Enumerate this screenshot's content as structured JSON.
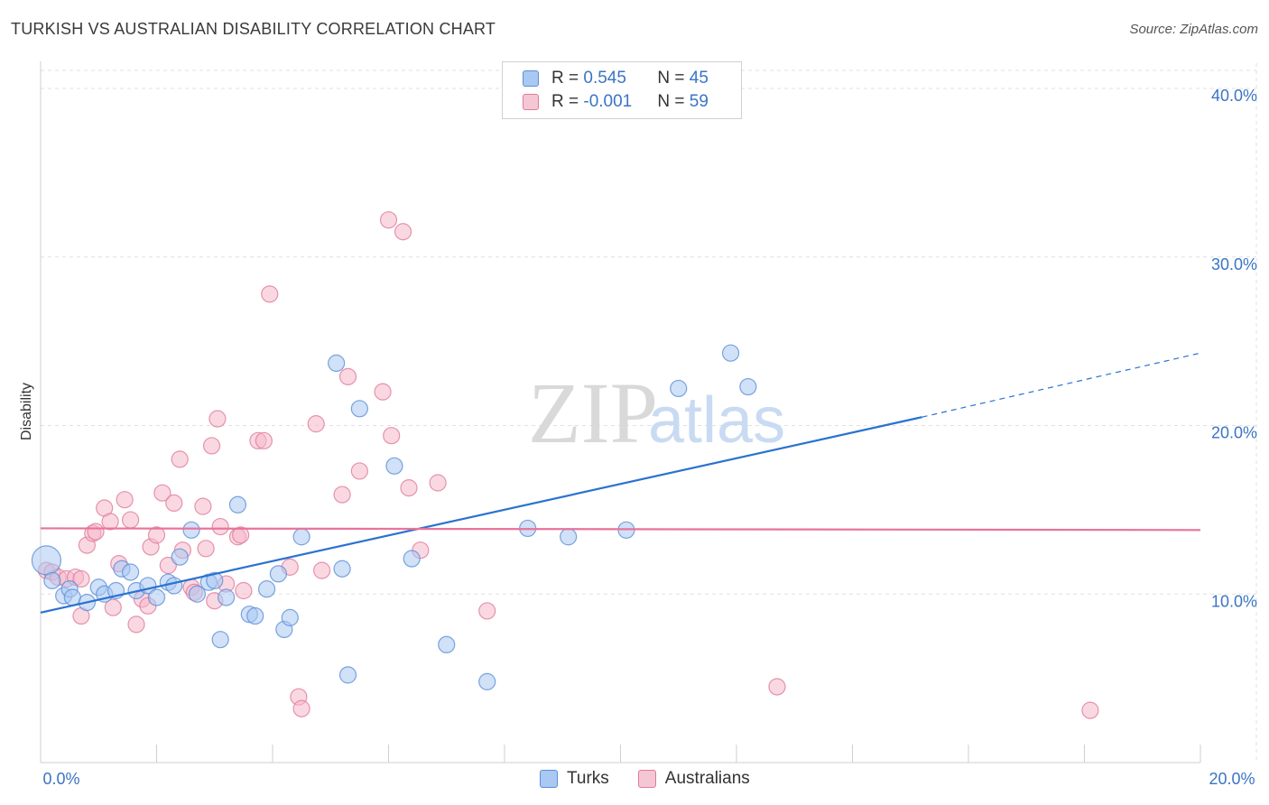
{
  "header": {
    "title": "TURKISH VS AUSTRALIAN DISABILITY CORRELATION CHART",
    "source": "Source: ZipAtlas.com"
  },
  "legend": {
    "turks": {
      "r_label": "R = ",
      "r_value": "0.545",
      "n_label": "N = ",
      "n_value": "45"
    },
    "australians": {
      "r_label": "R = ",
      "r_value": "-0.001",
      "n_label": "N = ",
      "n_value": "59"
    }
  },
  "bottom_legend": {
    "turks": "Turks",
    "australians": "Australians"
  },
  "colors": {
    "turks_fill": "#a9c9f2",
    "turks_stroke": "#5b8fd6",
    "turks_line": "#2a72d0",
    "australians_fill": "#f5b8cb",
    "australians_stroke": "#e07b9c",
    "australians_line": "#e8739b",
    "tick_label": "#3b74c4"
  },
  "chart_data": {
    "type": "scatter",
    "title": "TURKISH VS AUSTRALIAN DISABILITY CORRELATION CHART",
    "ylabel": "Disability",
    "xlabel": "",
    "xlim": [
      0,
      20
    ],
    "ylim": [
      0,
      41.5
    ],
    "x_tick_labels": [
      "0.0%",
      "20.0%"
    ],
    "y_ticks": [
      10,
      20,
      30,
      40
    ],
    "y_tick_labels": [
      "10.0%",
      "20.0%",
      "30.0%",
      "40.0%"
    ],
    "grid": true,
    "legend_position": "top-center",
    "series": [
      {
        "name": "Turks",
        "r": 0.545,
        "n": 45,
        "trend": {
          "x0": 0,
          "y0": 8.9,
          "x1": 15.2,
          "y1": 20.5,
          "dashed_to_x": 20,
          "dashed_to_y": 24.3
        },
        "points": [
          [
            0.1,
            12.0
          ],
          [
            0.2,
            10.8
          ],
          [
            0.4,
            9.9
          ],
          [
            0.5,
            10.3
          ],
          [
            0.55,
            9.8
          ],
          [
            0.8,
            9.5
          ],
          [
            1.0,
            10.4
          ],
          [
            1.1,
            10.0
          ],
          [
            1.3,
            10.2
          ],
          [
            1.4,
            11.5
          ],
          [
            1.55,
            11.3
          ],
          [
            1.65,
            10.2
          ],
          [
            1.85,
            10.5
          ],
          [
            2.0,
            9.8
          ],
          [
            2.2,
            10.7
          ],
          [
            2.3,
            10.5
          ],
          [
            2.4,
            12.2
          ],
          [
            2.6,
            13.8
          ],
          [
            2.7,
            10.0
          ],
          [
            2.9,
            10.7
          ],
          [
            3.0,
            10.8
          ],
          [
            3.1,
            7.3
          ],
          [
            3.2,
            9.8
          ],
          [
            3.4,
            15.3
          ],
          [
            3.6,
            8.8
          ],
          [
            3.7,
            8.7
          ],
          [
            3.9,
            10.3
          ],
          [
            4.1,
            11.2
          ],
          [
            4.2,
            7.9
          ],
          [
            4.3,
            8.6
          ],
          [
            4.5,
            13.4
          ],
          [
            5.1,
            23.7
          ],
          [
            5.2,
            11.5
          ],
          [
            5.3,
            5.2
          ],
          [
            5.5,
            21.0
          ],
          [
            6.1,
            17.6
          ],
          [
            6.4,
            12.1
          ],
          [
            7.0,
            7.0
          ],
          [
            7.7,
            4.8
          ],
          [
            8.4,
            13.9
          ],
          [
            9.1,
            13.4
          ],
          [
            10.1,
            13.8
          ],
          [
            11.0,
            22.2
          ],
          [
            11.9,
            24.3
          ],
          [
            12.2,
            22.3
          ]
        ]
      },
      {
        "name": "Australians",
        "r": -0.001,
        "n": 59,
        "trend": {
          "x0": 0,
          "y0": 13.9,
          "x1": 20,
          "y1": 13.8
        },
        "points": [
          [
            0.1,
            11.4
          ],
          [
            0.2,
            11.3
          ],
          [
            0.3,
            11.0
          ],
          [
            0.45,
            10.9
          ],
          [
            0.6,
            11.0
          ],
          [
            0.7,
            10.9
          ],
          [
            0.7,
            8.7
          ],
          [
            0.8,
            12.9
          ],
          [
            0.9,
            13.6
          ],
          [
            0.95,
            13.7
          ],
          [
            1.1,
            15.1
          ],
          [
            1.2,
            14.3
          ],
          [
            1.25,
            9.2
          ],
          [
            1.35,
            11.8
          ],
          [
            1.45,
            15.6
          ],
          [
            1.55,
            14.4
          ],
          [
            1.65,
            8.2
          ],
          [
            1.75,
            9.7
          ],
          [
            1.85,
            9.3
          ],
          [
            1.9,
            12.8
          ],
          [
            2.0,
            13.5
          ],
          [
            2.1,
            16.0
          ],
          [
            2.2,
            11.7
          ],
          [
            2.3,
            15.4
          ],
          [
            2.4,
            18.0
          ],
          [
            2.45,
            12.6
          ],
          [
            2.6,
            10.4
          ],
          [
            2.65,
            10.1
          ],
          [
            2.8,
            15.2
          ],
          [
            2.85,
            12.7
          ],
          [
            2.95,
            18.8
          ],
          [
            3.0,
            9.6
          ],
          [
            3.05,
            20.4
          ],
          [
            3.2,
            10.6
          ],
          [
            3.4,
            13.4
          ],
          [
            3.45,
            13.5
          ],
          [
            3.5,
            10.2
          ],
          [
            3.75,
            19.1
          ],
          [
            3.85,
            19.1
          ],
          [
            3.95,
            27.8
          ],
          [
            4.3,
            11.6
          ],
          [
            4.45,
            3.9
          ],
          [
            4.5,
            3.2
          ],
          [
            4.75,
            20.1
          ],
          [
            4.85,
            11.4
          ],
          [
            5.2,
            15.9
          ],
          [
            5.3,
            22.9
          ],
          [
            5.5,
            17.3
          ],
          [
            5.9,
            22.0
          ],
          [
            6.0,
            32.2
          ],
          [
            6.05,
            19.4
          ],
          [
            6.25,
            31.5
          ],
          [
            6.35,
            16.3
          ],
          [
            6.55,
            12.6
          ],
          [
            6.85,
            16.6
          ],
          [
            7.7,
            9.0
          ],
          [
            12.7,
            4.5
          ],
          [
            18.1,
            3.1
          ],
          [
            3.1,
            14.0
          ]
        ]
      }
    ]
  }
}
